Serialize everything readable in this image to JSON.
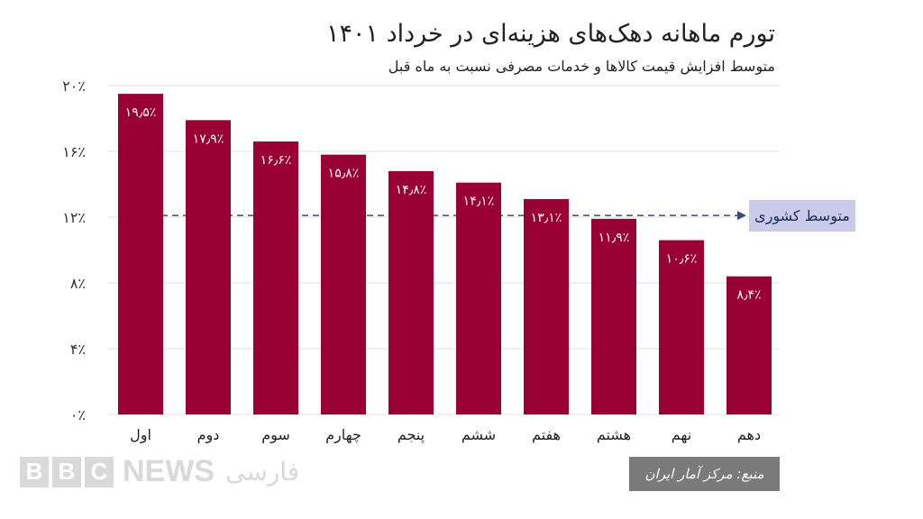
{
  "chart_data": {
    "type": "bar",
    "title": "تورم ماهانه دهک‌های هزینه‌ای در خرداد ۱۴۰۱",
    "subtitle": "متوسط افزایش قیمت کالاها و خدمات مصرفی نسبت به ماه قبل",
    "categories": [
      "اول",
      "دوم",
      "سوم",
      "چهارم",
      "پنجم",
      "ششم",
      "هفتم",
      "هشتم",
      "نهم",
      "دهم"
    ],
    "values": [
      19.5,
      17.9,
      16.6,
      15.8,
      14.8,
      14.1,
      13.1,
      11.9,
      10.6,
      8.4
    ],
    "value_labels": [
      "۱۹٫۵٪",
      "۱۷٫۹٪",
      "۱۶٫۶٪",
      "۱۵٫۸٪",
      "۱۴٫۸٪",
      "۱۴٫۱٪",
      "۱۳٫۱٪",
      "۱۱٫۹٪",
      "۱۰٫۶٪",
      "۸٫۴٪"
    ],
    "yticks": [
      0,
      4,
      8,
      12,
      16,
      20
    ],
    "ytick_labels": [
      "۰٪",
      "۴٪",
      "۸٪",
      "۱۲٪",
      "۱۶٪",
      "۲۰٪"
    ],
    "ylim": [
      0,
      20
    ],
    "grid": true,
    "reference_line": {
      "value": 12.1,
      "label": "متوسط کشوری",
      "color": "#3a4a7a"
    },
    "bar_color": "#990033",
    "xlabel": "",
    "ylabel": ""
  },
  "branding": {
    "logo": "BBC NEWS فارسی"
  },
  "source": "منبع: مرکز آمار ایران"
}
